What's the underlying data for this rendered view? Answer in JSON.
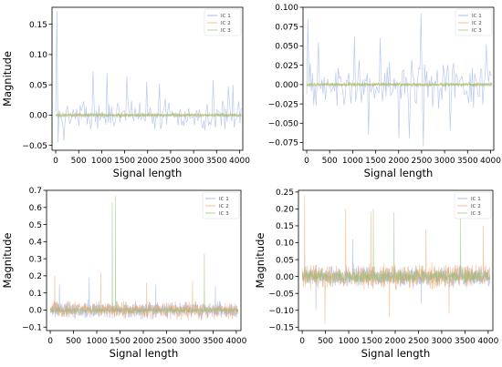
{
  "colors": {
    "ic1": "#7f9fe0",
    "ic2": "#f0a060",
    "ic3": "#90c070"
  },
  "chart_data": [
    {
      "type": "line",
      "xlabel": "Signal length",
      "ylabel": "Magnitude",
      "xlim": [
        -80,
        4070
      ],
      "ylim": [
        -0.058,
        0.178
      ],
      "xticks": [
        0,
        500,
        1000,
        1500,
        2000,
        2500,
        3000,
        3500,
        4000
      ],
      "yticks": [
        -0.05,
        0.0,
        0.05,
        0.1,
        0.15
      ],
      "ytick_labels": [
        "−0.05",
        "0.00",
        "0.05",
        "0.10",
        "0.15"
      ],
      "legend_position": "top-right",
      "series": [
        {
          "name": "IC 1",
          "color_key": "ic1",
          "amplitude": 0.025,
          "spikes": [
            [
              20,
              0.172
            ],
            [
              55,
              -0.045
            ],
            [
              180,
              -0.042
            ],
            [
              820,
              0.072
            ],
            [
              1130,
              0.07
            ],
            [
              1550,
              0.064
            ],
            [
              2000,
              0.055
            ],
            [
              2280,
              0.052
            ],
            [
              3450,
              0.058
            ],
            [
              3800,
              0.048
            ],
            [
              3900,
              0.05
            ]
          ]
        },
        {
          "name": "IC 2",
          "color_key": "ic2",
          "amplitude": 0.002,
          "spikes": []
        },
        {
          "name": "IC 3",
          "color_key": "ic3",
          "amplitude": 0.004,
          "spikes": []
        }
      ]
    },
    {
      "type": "line",
      "xlabel": "Signal length",
      "ylabel": "",
      "xlim": [
        -80,
        4070
      ],
      "ylim": [
        -0.085,
        0.1
      ],
      "xticks": [
        0,
        500,
        1000,
        1500,
        2000,
        2500,
        3000,
        3500,
        4000
      ],
      "yticks": [
        -0.075,
        -0.05,
        -0.025,
        0.0,
        0.025,
        0.05,
        0.075,
        0.1
      ],
      "ytick_labels": [
        "−0.075",
        "−0.050",
        "−0.025",
        "0.000",
        "0.025",
        "0.050",
        "0.075",
        "0.100"
      ],
      "legend_position": "top-right",
      "series": [
        {
          "name": "IC 1",
          "color_key": "ic1",
          "amplitude": 0.03,
          "spikes": [
            [
              30,
              0.084
            ],
            [
              260,
              0.055
            ],
            [
              1050,
              0.062
            ],
            [
              1350,
              -0.065
            ],
            [
              1600,
              0.06
            ],
            [
              2010,
              -0.07
            ],
            [
              2260,
              -0.07
            ],
            [
              2520,
              0.092
            ],
            [
              2560,
              -0.08
            ],
            [
              3150,
              -0.06
            ],
            [
              3650,
              -0.03
            ],
            [
              3950,
              0.052
            ]
          ]
        },
        {
          "name": "IC 2",
          "color_key": "ic2",
          "amplitude": 0.0015,
          "spikes": []
        },
        {
          "name": "IC 3",
          "color_key": "ic3",
          "amplitude": 0.003,
          "spikes": []
        }
      ]
    },
    {
      "type": "line",
      "xlabel": "Signal length",
      "ylabel": "Magnitude",
      "xlim": [
        -80,
        4100
      ],
      "ylim": [
        -0.12,
        0.7
      ],
      "xticks": [
        0,
        500,
        1000,
        1500,
        2000,
        2500,
        3000,
        3500,
        4000
      ],
      "yticks": [
        -0.1,
        0.0,
        0.1,
        0.2,
        0.3,
        0.4,
        0.5,
        0.6,
        0.7
      ],
      "ytick_labels": [
        "−0.1",
        "0.0",
        "0.1",
        "0.2",
        "0.3",
        "0.4",
        "0.5",
        "0.6",
        "0.7"
      ],
      "legend_position": "top-right",
      "series": [
        {
          "name": "IC 1",
          "color_key": "ic1",
          "amplitude": 0.05,
          "spikes": [
            [
              200,
              0.15
            ],
            [
              850,
              0.19
            ],
            [
              2300,
              0.15
            ],
            [
              3600,
              0.14
            ]
          ]
        },
        {
          "name": "IC 2",
          "color_key": "ic2",
          "amplitude": 0.05,
          "spikes": [
            [
              100,
              0.2
            ],
            [
              1100,
              0.22
            ],
            [
              2100,
              0.16
            ],
            [
              3100,
              0.17
            ]
          ]
        },
        {
          "name": "IC 3",
          "color_key": "ic3",
          "amplitude": 0.015,
          "spikes": [
            [
              1350,
              0.63
            ],
            [
              1420,
              0.67
            ],
            [
              3360,
              0.33
            ]
          ]
        }
      ]
    },
    {
      "type": "line",
      "xlabel": "Signal length",
      "ylabel": "Magnitude",
      "xlim": [
        -80,
        4100
      ],
      "ylim": [
        -0.16,
        0.255
      ],
      "xticks": [
        0,
        500,
        1000,
        1500,
        2000,
        2500,
        3000,
        3500,
        4000
      ],
      "yticks": [
        -0.15,
        -0.1,
        -0.05,
        0.0,
        0.05,
        0.1,
        0.15,
        0.2,
        0.25
      ],
      "ytick_labels": [
        "−0.15",
        "−0.10",
        "−0.05",
        "0.00",
        "0.05",
        "0.10",
        "0.15",
        "0.20",
        "0.25"
      ],
      "legend_position": "top-right",
      "series": [
        {
          "name": "IC 1",
          "color_key": "ic1",
          "amplitude": 0.03,
          "spikes": [
            [
              300,
              -0.1
            ],
            [
              1100,
              0.11
            ],
            [
              2600,
              -0.08
            ]
          ]
        },
        {
          "name": "IC 2",
          "color_key": "ic2",
          "amplitude": 0.035,
          "spikes": [
            [
              50,
              0.24
            ],
            [
              500,
              -0.14
            ],
            [
              950,
              0.2
            ],
            [
              1500,
              0.19
            ],
            [
              1900,
              -0.12
            ],
            [
              2700,
              0.14
            ],
            [
              3200,
              -0.11
            ],
            [
              3950,
              0.15
            ]
          ]
        },
        {
          "name": "IC 3",
          "color_key": "ic3",
          "amplitude": 0.02,
          "spikes": [
            [
              1550,
              0.2
            ],
            [
              2000,
              0.19
            ],
            [
              3450,
              0.18
            ]
          ]
        }
      ]
    }
  ]
}
